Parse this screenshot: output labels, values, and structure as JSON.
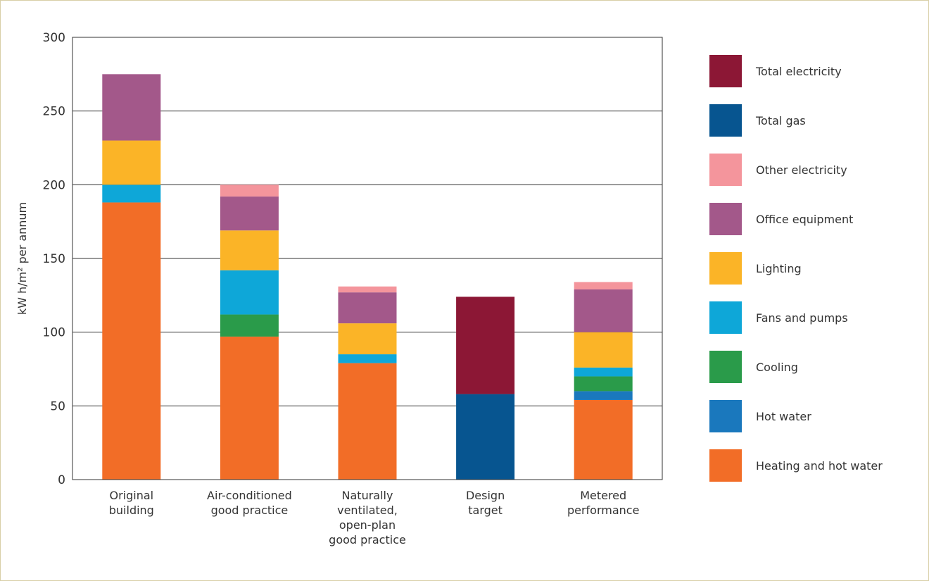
{
  "chart_data": {
    "type": "bar",
    "stacked": true,
    "ylabel": "kW h/m² per annum",
    "ylim": [
      0,
      300
    ],
    "yticks": [
      0,
      50,
      100,
      150,
      200,
      250,
      300
    ],
    "grid": true,
    "legend_position": "right",
    "categories": [
      [
        "Original",
        "building"
      ],
      [
        "Air-conditioned",
        "good practice"
      ],
      [
        "Naturally",
        "ventilated,",
        "open-plan",
        "good practice"
      ],
      [
        "Design",
        "target"
      ],
      [
        "Metered",
        "performance"
      ]
    ],
    "series": [
      {
        "name": "Heating and hot water",
        "color": "#f26d27",
        "values": [
          188,
          97,
          79,
          0,
          54
        ]
      },
      {
        "name": "Hot water",
        "color": "#1a78bd",
        "values": [
          0,
          0,
          0,
          0,
          6
        ]
      },
      {
        "name": "Cooling",
        "color": "#2a9b4a",
        "values": [
          0,
          15,
          0,
          0,
          10
        ]
      },
      {
        "name": "Fans and pumps",
        "color": "#0ea7d8",
        "values": [
          12,
          30,
          6,
          0,
          6
        ]
      },
      {
        "name": "Lighting",
        "color": "#fbb427",
        "values": [
          30,
          27,
          21,
          0,
          24
        ]
      },
      {
        "name": "Office equipment",
        "color": "#a3588a",
        "values": [
          45,
          23,
          21,
          0,
          29
        ]
      },
      {
        "name": "Other electricity",
        "color": "#f4959c",
        "values": [
          0,
          8,
          4,
          0,
          5
        ]
      },
      {
        "name": "Total gas",
        "color": "#075590",
        "values": [
          0,
          0,
          0,
          58,
          0
        ]
      },
      {
        "name": "Total electricity",
        "color": "#8c1735",
        "values": [
          0,
          0,
          0,
          66,
          0
        ]
      }
    ]
  }
}
